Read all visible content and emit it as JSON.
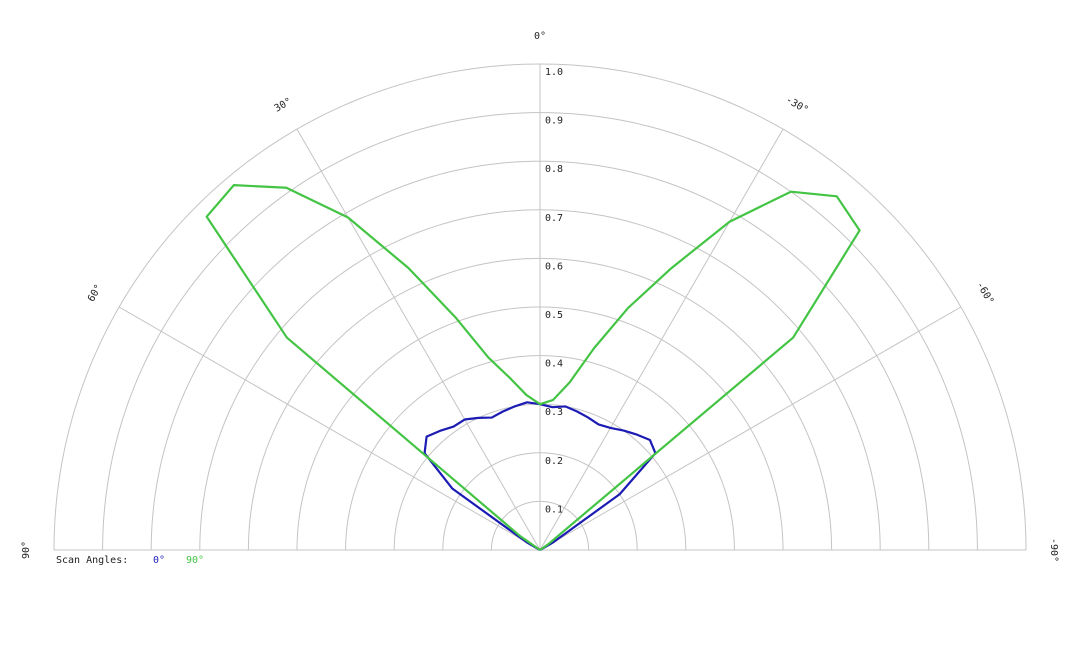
{
  "chart_data": {
    "type": "polar",
    "legend_title": "Scan Angles:",
    "x": [
      -90,
      -85,
      -80,
      -75,
      -70,
      -65,
      -60,
      -55,
      -50,
      -45,
      -40,
      -35,
      -30,
      -25,
      -20,
      -15,
      -10,
      -5,
      0,
      5,
      10,
      15,
      20,
      25,
      30,
      35,
      40,
      45,
      50,
      55,
      60,
      65,
      70,
      75,
      80,
      85,
      90
    ],
    "series": [
      {
        "name": "0°",
        "color": "#1c1cb4",
        "values": [
          0,
          0,
          0,
          0,
          0,
          0,
          0.03,
          0.2,
          0.31,
          0.32,
          0.31,
          0.3,
          0.29,
          0.285,
          0.29,
          0.295,
          0.3,
          0.295,
          0.3,
          0.305,
          0.3,
          0.295,
          0.29,
          0.3,
          0.31,
          0.31,
          0.32,
          0.33,
          0.31,
          0.22,
          0.03,
          0,
          0,
          0,
          0,
          0,
          0
        ]
      },
      {
        "name": "90°",
        "color": "#44c444",
        "values": [
          0,
          0,
          0,
          0,
          0,
          0,
          0,
          0.02,
          0.68,
          0.93,
          0.95,
          0.9,
          0.78,
          0.64,
          0.53,
          0.43,
          0.35,
          0.31,
          0.3,
          0.32,
          0.36,
          0.41,
          0.51,
          0.64,
          0.79,
          0.91,
          0.98,
          0.97,
          0.68,
          0.05,
          0,
          0,
          0,
          0,
          0,
          0,
          0
        ]
      }
    ],
    "rlim": [
      0,
      1
    ],
    "rticks": [
      0.1,
      0.2,
      0.3,
      0.4,
      0.5,
      0.6,
      0.7,
      0.8,
      0.9,
      {
        "value": 1,
        "label": "1.0"
      }
    ],
    "thetalim": [
      -90,
      90
    ],
    "thetaticks": [
      {
        "value": -90,
        "label": "-90°"
      },
      {
        "value": -60,
        "label": "-60°"
      },
      {
        "value": -30,
        "label": "-30°"
      },
      {
        "value": 0,
        "label": "0°"
      },
      {
        "value": 30,
        "label": "30°"
      },
      {
        "value": 60,
        "label": "60°"
      },
      {
        "value": 90,
        "label": "90°"
      }
    ]
  }
}
